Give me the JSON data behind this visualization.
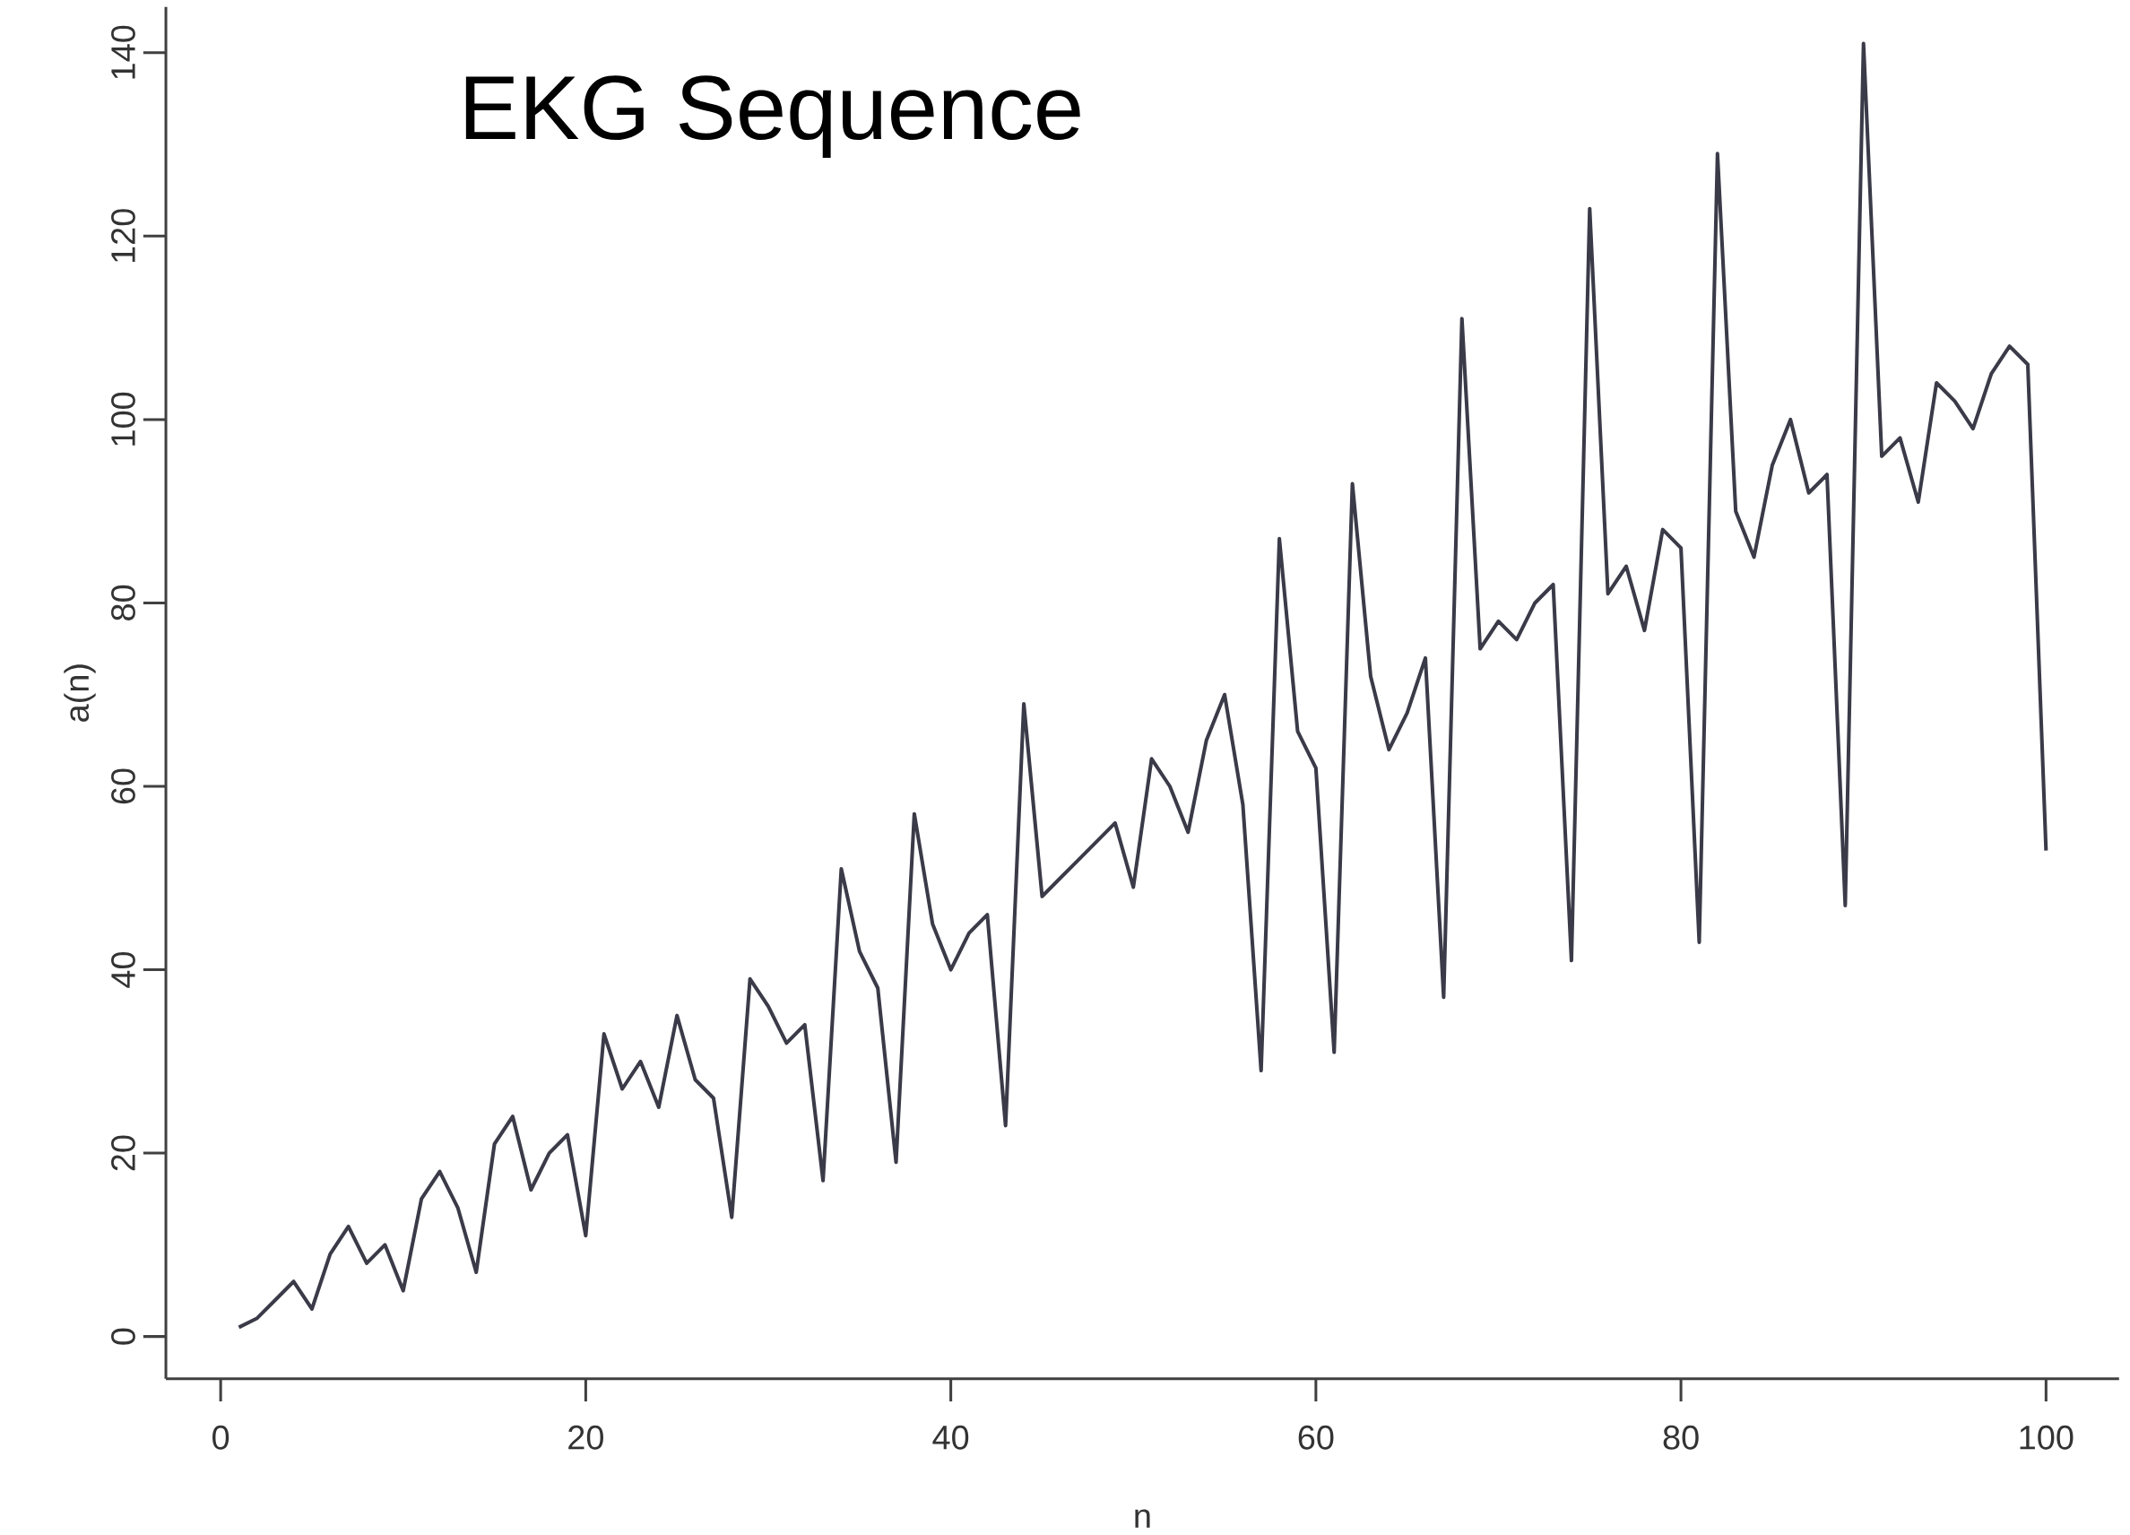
{
  "chart_data": {
    "type": "line",
    "title": "EKG Sequence",
    "xlabel": "n",
    "ylabel": "a(n)",
    "x": [
      1,
      2,
      3,
      4,
      5,
      6,
      7,
      8,
      9,
      10,
      11,
      12,
      13,
      14,
      15,
      16,
      17,
      18,
      19,
      20,
      21,
      22,
      23,
      24,
      25,
      26,
      27,
      28,
      29,
      30,
      31,
      32,
      33,
      34,
      35,
      36,
      37,
      38,
      39,
      40,
      41,
      42,
      43,
      44,
      45,
      46,
      47,
      48,
      49,
      50,
      51,
      52,
      53,
      54,
      55,
      56,
      57,
      58,
      59,
      60,
      61,
      62,
      63,
      64,
      65,
      66,
      67,
      68,
      69,
      70,
      71,
      72,
      73,
      74,
      75,
      76,
      77,
      78,
      79,
      80,
      81,
      82,
      83,
      84,
      85,
      86,
      87,
      88,
      89,
      90,
      91,
      92,
      93,
      94,
      95,
      96,
      97,
      98,
      99,
      100
    ],
    "series": [
      {
        "color": "#3a3a48",
        "values": [
          1,
          2,
          4,
          6,
          3,
          9,
          12,
          8,
          10,
          5,
          15,
          18,
          14,
          7,
          21,
          24,
          16,
          20,
          22,
          11,
          33,
          27,
          30,
          25,
          35,
          28,
          26,
          13,
          39,
          36,
          32,
          34,
          17,
          51,
          42,
          38,
          19,
          57,
          45,
          40,
          44,
          46,
          23,
          69,
          48,
          50,
          52,
          54,
          56,
          49,
          63,
          60,
          55,
          65,
          70,
          58,
          29,
          87,
          66,
          62,
          31,
          93,
          72,
          64,
          68,
          74,
          37,
          111,
          75,
          78,
          76,
          80,
          82,
          41,
          123,
          81,
          84,
          77,
          88,
          86,
          43,
          129,
          90,
          85,
          95,
          100,
          92,
          94,
          47,
          141,
          96,
          98,
          91,
          104,
          102,
          99,
          105,
          108,
          106,
          53
        ]
      }
    ],
    "xlim": [
      -3,
      104
    ],
    "ylim": [
      -4.6,
      145
    ],
    "xticks": [
      0,
      20,
      40,
      60,
      80,
      100
    ],
    "yticks": [
      0,
      20,
      40,
      60,
      80,
      100,
      120,
      140
    ],
    "grid": false,
    "marker": "none",
    "line_style": "solid"
  }
}
